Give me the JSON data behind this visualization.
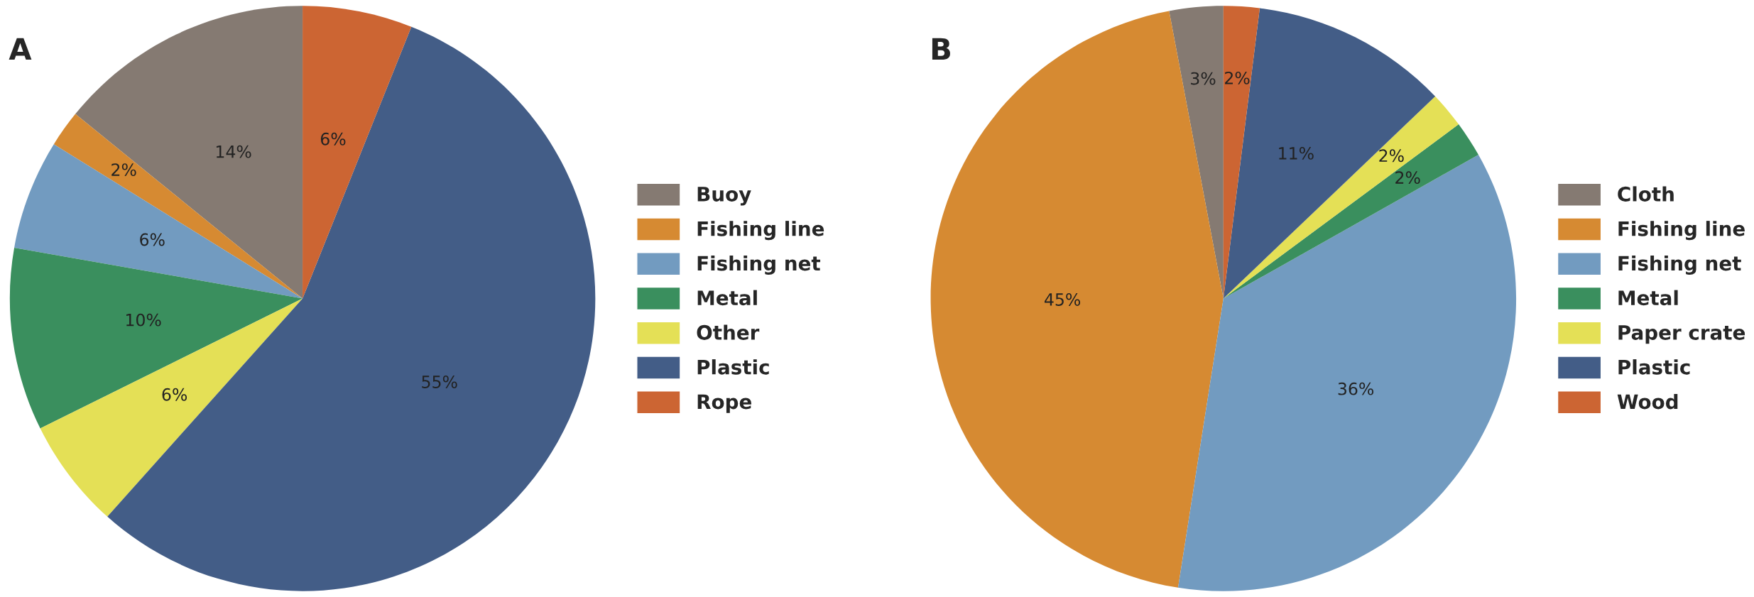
{
  "chart_data": [
    {
      "type": "pie",
      "title": "A",
      "categories": [
        "Buoy",
        "Fishing line",
        "Fishing net",
        "Metal",
        "Other",
        "Plastic",
        "Rope"
      ],
      "values": [
        14,
        2,
        6,
        10,
        6,
        55,
        6
      ],
      "colors": [
        "#857a72",
        "#d68a32",
        "#729bc0",
        "#3a8f5e",
        "#e4e056",
        "#435d87",
        "#cc6533"
      ],
      "value_labels": [
        "14%",
        "2%",
        "6%",
        "10%",
        "6%",
        "55%",
        "6%"
      ],
      "legend": "right"
    },
    {
      "type": "pie",
      "title": "B",
      "categories": [
        "Cloth",
        "Fishing line",
        "Fishing net",
        "Metal",
        "Paper crate",
        "Plastic",
        "Wood"
      ],
      "values": [
        3,
        45,
        36,
        2,
        2,
        11,
        2
      ],
      "colors": [
        "#857a72",
        "#d68a32",
        "#729bc0",
        "#3a8f5e",
        "#e4e056",
        "#435d87",
        "#cc6533"
      ],
      "value_labels": [
        "3%",
        "45%",
        "36%",
        "2%",
        "2%",
        "11%",
        "2%"
      ],
      "legend": "right"
    }
  ]
}
